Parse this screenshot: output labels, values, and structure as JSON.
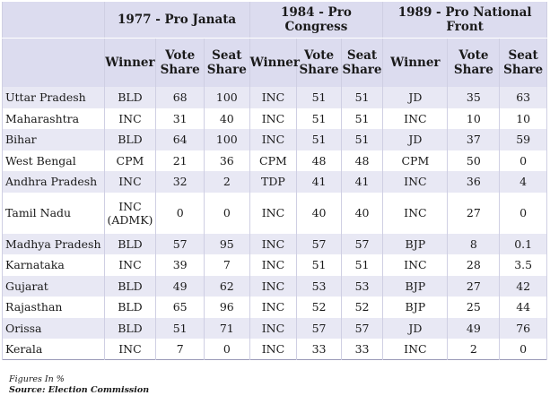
{
  "table": {
    "groups": [
      "1977 - Pro Janata",
      "1984 - Pro Congress",
      "1989 - Pro National Front"
    ],
    "sub_headers": {
      "winner": "Winner",
      "vote_share": "Vote Share",
      "seat_share": "Seat Share"
    },
    "rows": [
      {
        "state": "Uttar Pradesh",
        "w77": "BLD",
        "v77": "68",
        "s77": "100",
        "w84": "INC",
        "v84": "51",
        "s84": "51",
        "w89": "JD",
        "v89": "35",
        "s89": "63"
      },
      {
        "state": "Maharashtra",
        "w77": "INC",
        "v77": "31",
        "s77": "40",
        "w84": "INC",
        "v84": "51",
        "s84": "51",
        "w89": "INC",
        "v89": "10",
        "s89": "10"
      },
      {
        "state": "Bihar",
        "w77": "BLD",
        "v77": "64",
        "s77": "100",
        "w84": "INC",
        "v84": "51",
        "s84": "51",
        "w89": "JD",
        "v89": "37",
        "s89": "59"
      },
      {
        "state": "West Bengal",
        "w77": "CPM",
        "v77": "21",
        "s77": "36",
        "w84": "CPM",
        "v84": "48",
        "s84": "48",
        "w89": "CPM",
        "v89": "50",
        "s89": "0"
      },
      {
        "state": "Andhra Pradesh",
        "w77": "INC",
        "v77": "32",
        "s77": "2",
        "w84": "TDP",
        "v84": "41",
        "s84": "41",
        "w89": "INC",
        "v89": "36",
        "s89": "4"
      },
      {
        "state": "Tamil Nadu",
        "w77": "INC (ADMK)",
        "v77": "0",
        "s77": "0",
        "w84": "INC",
        "v84": "40",
        "s84": "40",
        "w89": "INC",
        "v89": "27",
        "s89": "0"
      },
      {
        "state": "Madhya Pradesh",
        "w77": "BLD",
        "v77": "57",
        "s77": "95",
        "w84": "INC",
        "v84": "57",
        "s84": "57",
        "w89": "BJP",
        "v89": "8",
        "s89": "0.1"
      },
      {
        "state": "Karnataka",
        "w77": "INC",
        "v77": "39",
        "s77": "7",
        "w84": "INC",
        "v84": "51",
        "s84": "51",
        "w89": "INC",
        "v89": "28",
        "s89": "3.5"
      },
      {
        "state": "Gujarat",
        "w77": "BLD",
        "v77": "49",
        "s77": "62",
        "w84": "INC",
        "v84": "53",
        "s84": "53",
        "w89": "BJP",
        "v89": "27",
        "s89": "42"
      },
      {
        "state": "Rajasthan",
        "w77": "BLD",
        "v77": "65",
        "s77": "96",
        "w84": "INC",
        "v84": "52",
        "s84": "52",
        "w89": "BJP",
        "v89": "25",
        "s89": "44"
      },
      {
        "state": "Orissa",
        "w77": "BLD",
        "v77": "51",
        "s77": "71",
        "w84": "INC",
        "v84": "57",
        "s84": "57",
        "w89": "JD",
        "v89": "49",
        "s89": "76"
      },
      {
        "state": "Kerala",
        "w77": "INC",
        "v77": "7",
        "s77": "0",
        "w84": "INC",
        "v84": "33",
        "s84": "33",
        "w89": "INC",
        "v89": "2",
        "s89": "0"
      }
    ]
  },
  "footnote": {
    "note": "Figures In %",
    "source": "Source: Election Commission"
  }
}
